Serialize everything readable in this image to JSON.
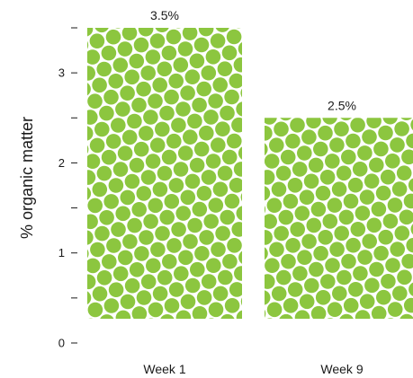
{
  "chart_data": {
    "type": "bar",
    "categories": [
      "Week 1",
      "Week 9"
    ],
    "values": [
      3.5,
      2.5
    ],
    "data_labels": [
      "3.5%",
      "2.5%"
    ],
    "title": "",
    "xlabel": "",
    "ylabel": "% organic matter",
    "ylim": [
      0,
      3.5
    ],
    "yticks": [
      {
        "value": 0,
        "label": "0"
      },
      {
        "value": 0.5,
        "label": ""
      },
      {
        "value": 1,
        "label": "1"
      },
      {
        "value": 1.5,
        "label": ""
      },
      {
        "value": 2,
        "label": "2"
      },
      {
        "value": 2.5,
        "label": ""
      },
      {
        "value": 3,
        "label": "3"
      },
      {
        "value": 3.5,
        "label": ""
      }
    ],
    "grid": false,
    "legend": "none",
    "bar_pattern": "dots",
    "colors": {
      "dot": "#8cc63f",
      "background": "#ffffff",
      "text": "#1a1a1a"
    }
  }
}
